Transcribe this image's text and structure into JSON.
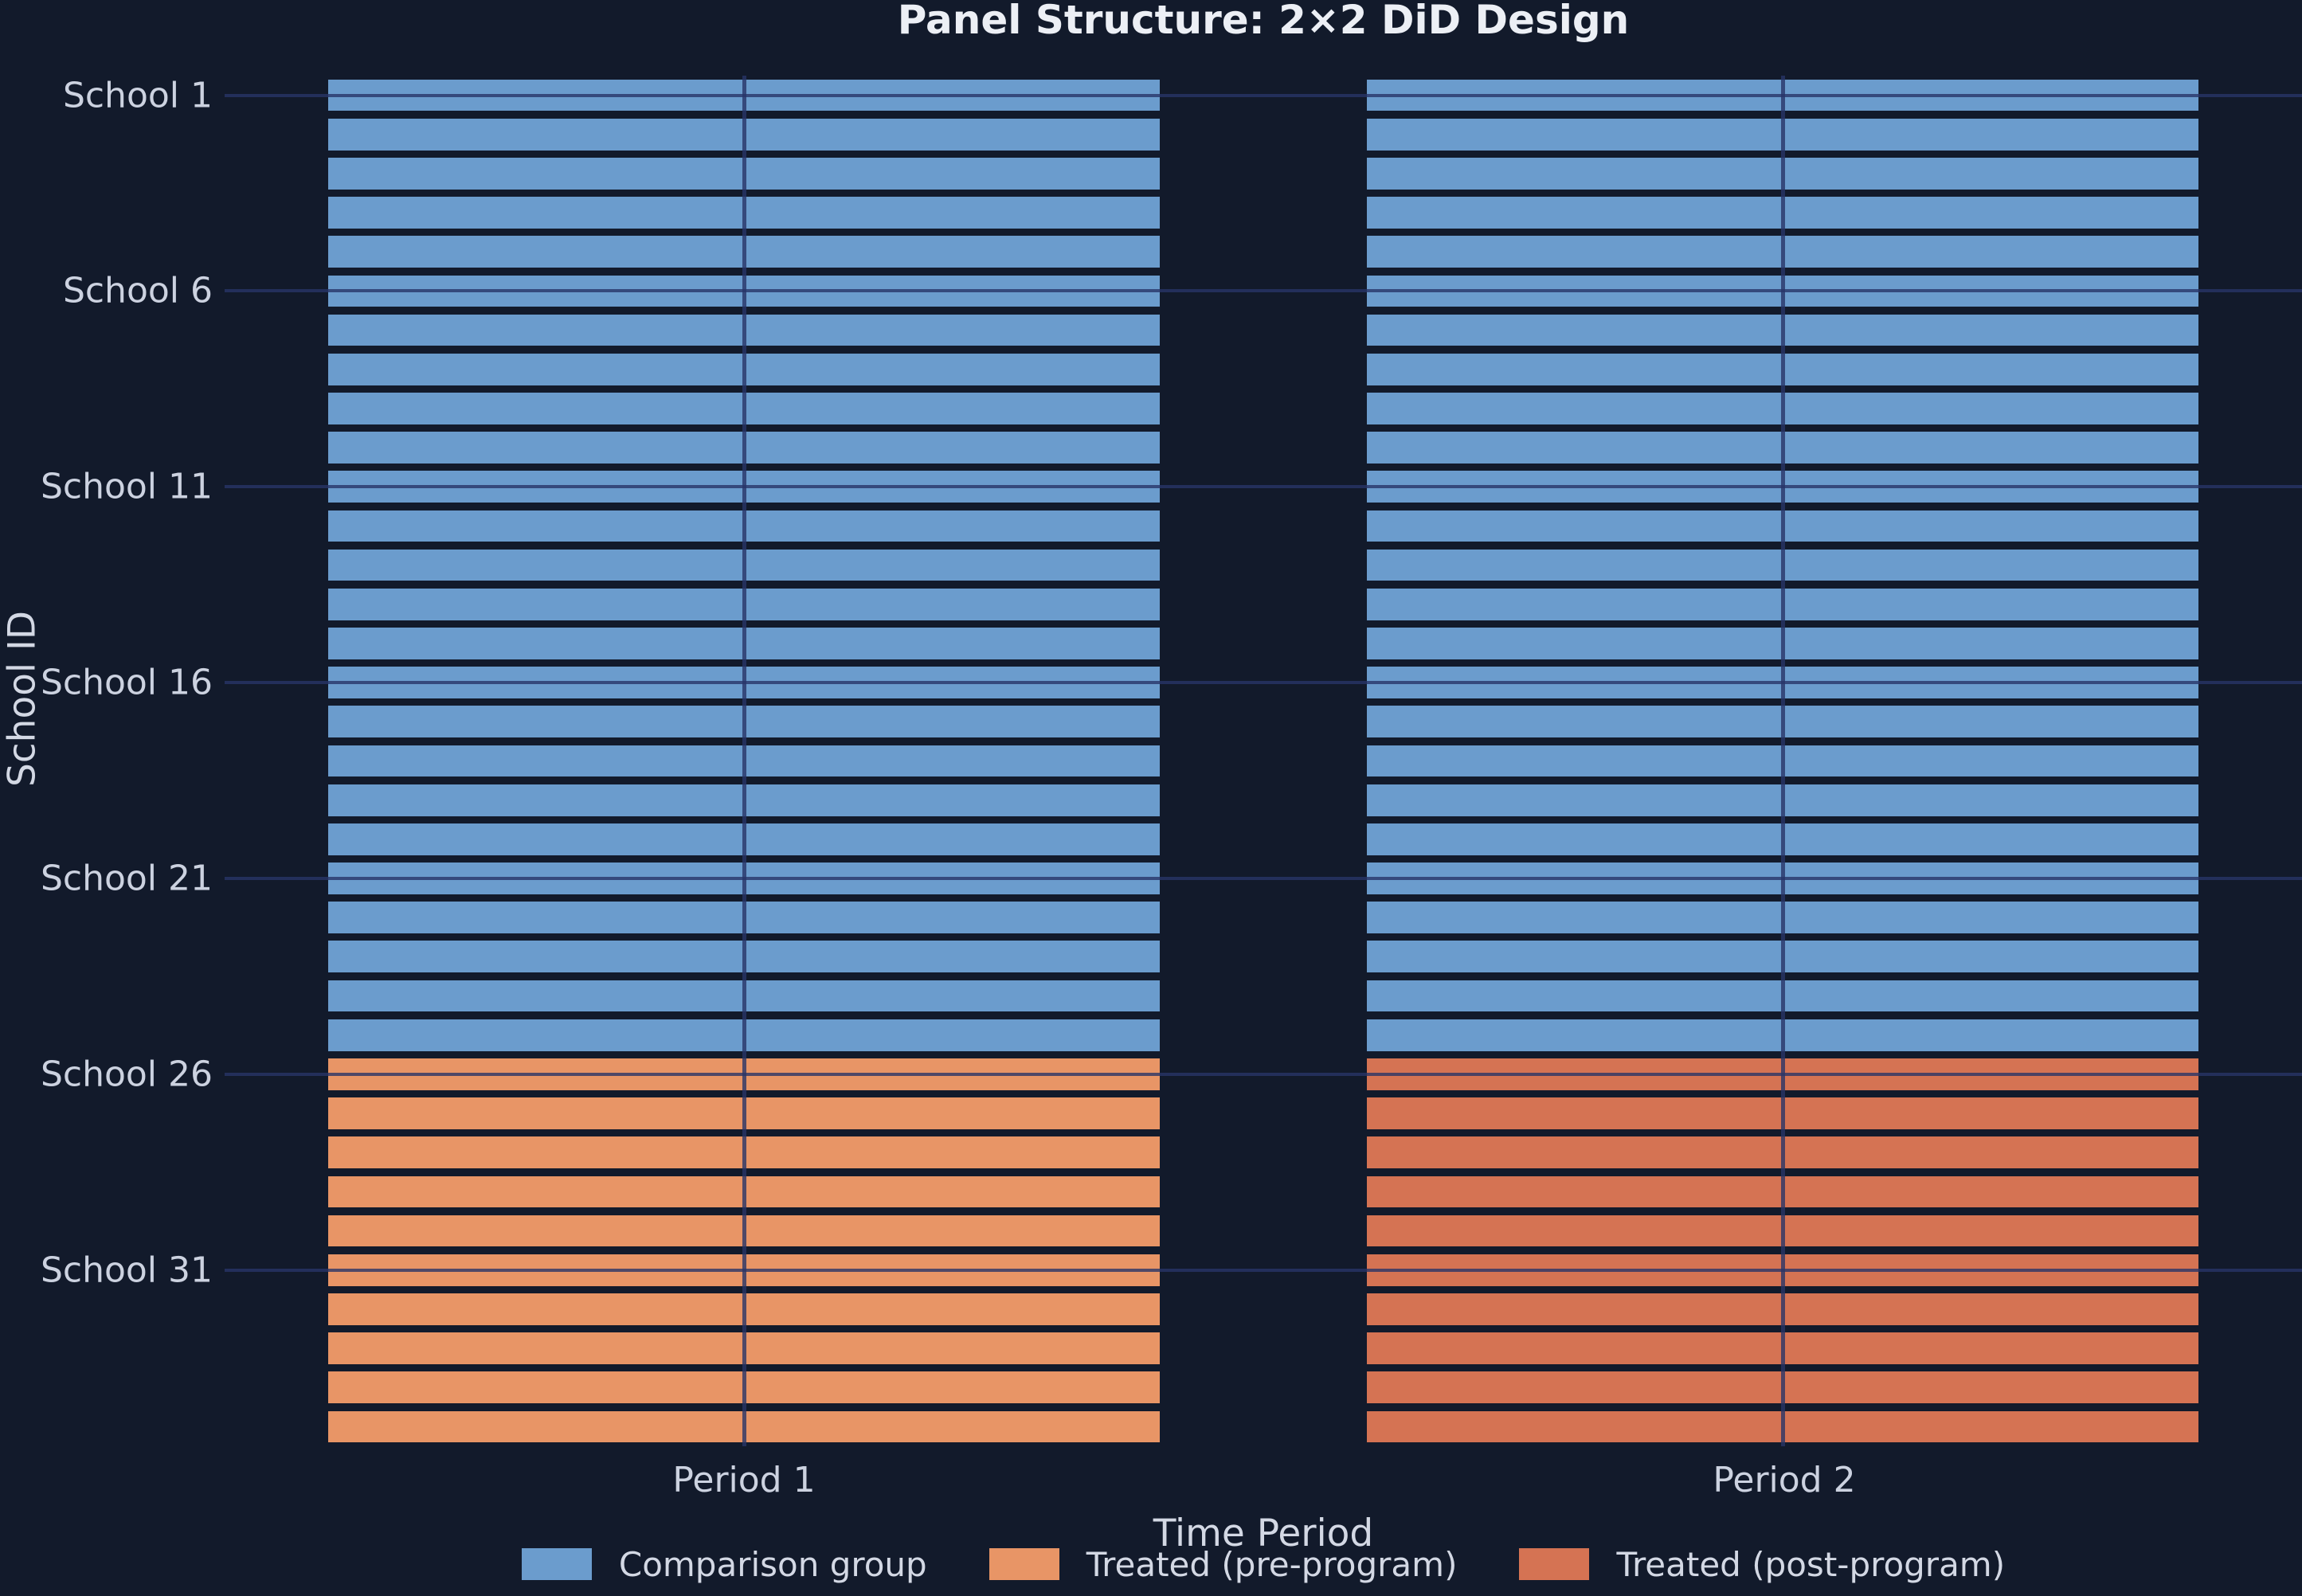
{
  "figure": {
    "title": "Panel Structure: 2×2 DiD Design",
    "background_color": "#121a2b",
    "grid_color": "#283468",
    "text_color": "#d3d8e4"
  },
  "chart_data": {
    "type": "bar",
    "subtype": "horizontal-panel-grid",
    "title": "Panel Structure: 2×2 DiD Design",
    "xlabel": "Time Period",
    "ylabel": "School ID",
    "x_categories": [
      "Period 1",
      "Period 2"
    ],
    "n_units": 35,
    "y_tick_labels": [
      "School 1",
      "School 6",
      "School 11",
      "School 16",
      "School 21",
      "School 26",
      "School 31"
    ],
    "y_tick_indices": [
      0,
      5,
      10,
      15,
      20,
      25,
      30
    ],
    "groups": {
      "comparison": {
        "schools_from": 1,
        "schools_to": 25,
        "period1_state": "comparison",
        "period2_state": "comparison"
      },
      "treated": {
        "schools_from": 26,
        "schools_to": 35,
        "period1_state": "treated_pre",
        "period2_state": "treated_post"
      }
    },
    "colors": {
      "comparison": "#6b9ccd",
      "treated_pre": "#e89566",
      "treated_post": "#d57353"
    },
    "legend": [
      {
        "label": "Comparison group",
        "color_key": "comparison"
      },
      {
        "label": "Treated (pre-program)",
        "color_key": "treated_pre"
      },
      {
        "label": "Treated (post-program)",
        "color_key": "treated_post"
      }
    ],
    "bar_rel_width": 0.8,
    "bar_rel_height": 0.81,
    "grid_on": true,
    "legend_position": "lower center outside"
  }
}
